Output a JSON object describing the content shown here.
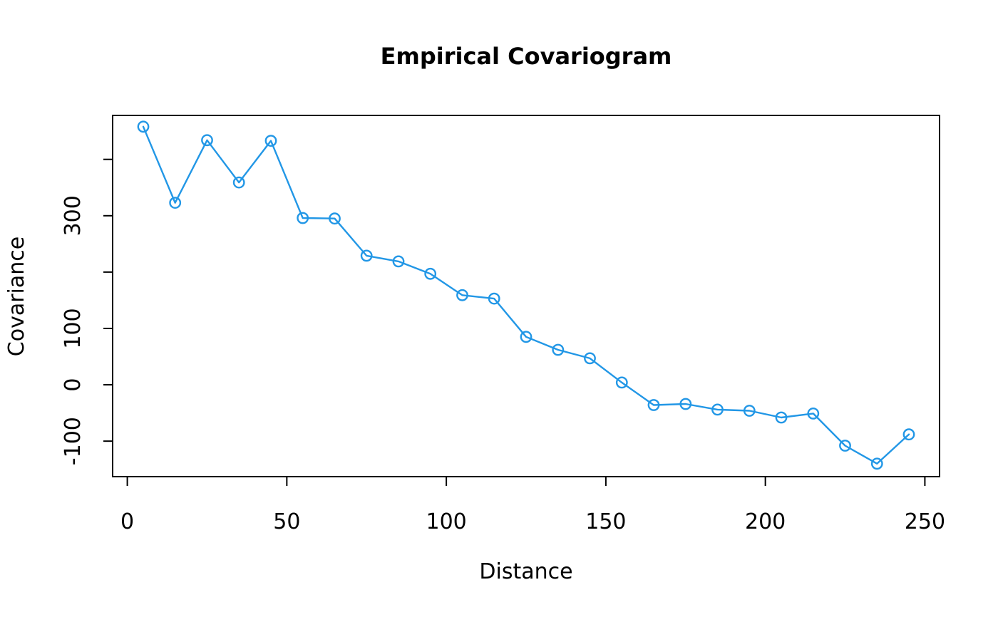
{
  "chart_data": {
    "type": "line",
    "title": "Empirical Covariogram",
    "xlabel": "Distance",
    "ylabel": "Covariance",
    "x": [
      5,
      15,
      25,
      35,
      45,
      55,
      65,
      75,
      85,
      95,
      105,
      115,
      125,
      135,
      145,
      155,
      165,
      175,
      185,
      195,
      205,
      215,
      225,
      235,
      245
    ],
    "y": [
      458,
      323,
      434,
      359,
      433,
      296,
      295,
      229,
      219,
      197,
      159,
      153,
      85,
      62,
      47,
      4,
      -36,
      -34,
      -44,
      -46,
      -58,
      -51,
      -108,
      -140,
      -88
    ],
    "xlim": [
      -4.6,
      254.6
    ],
    "ylim": [
      -163,
      478
    ],
    "x_ticks": [
      {
        "value": 0,
        "label": "0"
      },
      {
        "value": 50,
        "label": "50"
      },
      {
        "value": 100,
        "label": "100"
      },
      {
        "value": 150,
        "label": "150"
      },
      {
        "value": 200,
        "label": "200"
      },
      {
        "value": 250,
        "label": "250"
      }
    ],
    "y_ticks": [
      {
        "value": -100,
        "label": "-100"
      },
      {
        "value": 0,
        "label": "0"
      },
      {
        "value": 100,
        "label": "100"
      },
      {
        "value": 200,
        "label": ""
      },
      {
        "value": 300,
        "label": "300"
      },
      {
        "value": 400,
        "label": ""
      }
    ],
    "grid": false,
    "legend": null,
    "marker": "open-circle",
    "colors": {
      "series": "#2297E6",
      "axis": "#000000",
      "text": "#000000",
      "background": "#FFFFFF"
    }
  }
}
